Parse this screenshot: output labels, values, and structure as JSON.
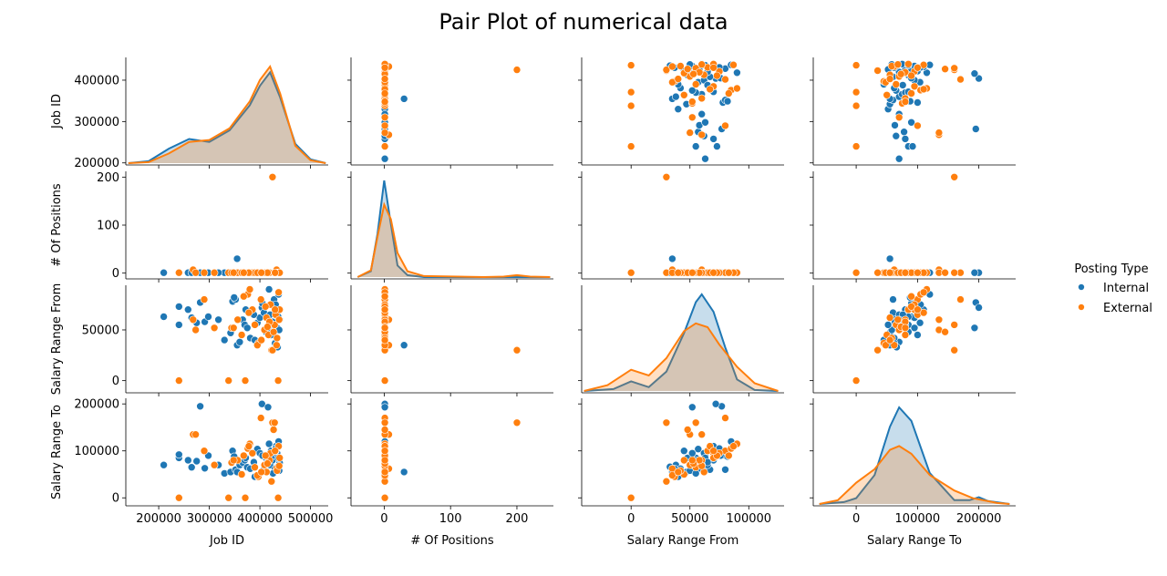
{
  "colors": {
    "internal": "#1f77b4",
    "external": "#ff7f0e"
  },
  "chart_data": {
    "type": "scatter",
    "title": "Pair Plot of numerical data",
    "variables": [
      "Job ID",
      "# Of Positions",
      "Salary Range From",
      "Salary Range To"
    ],
    "ranges": {
      "Job ID": [
        135000,
        535000
      ],
      "# Of Positions": [
        -50,
        255
      ],
      "Salary Range From": [
        -42000,
        130000
      ],
      "Salary Range To": [
        -70000,
        260000
      ]
    },
    "ylims": {
      "Job ID": [
        195000,
        455000
      ],
      "# Of Positions": [
        -12,
        212
      ],
      "Salary Range From": [
        -12000,
        94000
      ],
      "Salary Range To": [
        -17000,
        212000
      ]
    },
    "ticks": {
      "Job ID": {
        "values": [
          200000,
          300000,
          400000,
          500000
        ],
        "labels": [
          "200000",
          "300000",
          "400000",
          "500000"
        ]
      },
      "# Of Positions": {
        "values": [
          0,
          100,
          200
        ],
        "labels": [
          "0",
          "100",
          "200"
        ]
      },
      "Salary Range From": {
        "values": [
          0,
          50000,
          100000
        ],
        "labels": [
          "0",
          "50000",
          "100000"
        ]
      },
      "Salary Range To": {
        "values": [
          0,
          100000,
          200000
        ],
        "labels": [
          "0",
          "100000",
          "200000"
        ]
      }
    },
    "row_ticks": [
      {
        "values": [
          200000,
          300000,
          400000
        ],
        "labels": [
          "200000",
          "300000",
          "400000"
        ]
      },
      {
        "values": [
          0,
          100,
          200
        ],
        "labels": [
          "0",
          "100",
          "200"
        ]
      },
      {
        "values": [
          0,
          50000
        ],
        "labels": [
          "0",
          "50000"
        ]
      },
      {
        "values": [
          0,
          100000,
          200000
        ],
        "labels": [
          "0",
          "100000",
          "200000"
        ]
      }
    ],
    "legend": {
      "title": "Posting Type",
      "entries": [
        "Internal",
        "External"
      ],
      "position": "right"
    },
    "hue": [
      "Internal",
      "External"
    ],
    "kde": {
      "Job ID": {
        "Internal": [
          [
            140000,
            0.0
          ],
          [
            180000,
            0.02
          ],
          [
            220000,
            0.15
          ],
          [
            260000,
            0.25
          ],
          [
            300000,
            0.22
          ],
          [
            340000,
            0.34
          ],
          [
            380000,
            0.6
          ],
          [
            400000,
            0.8
          ],
          [
            420000,
            0.94
          ],
          [
            440000,
            0.68
          ],
          [
            470000,
            0.2
          ],
          [
            500000,
            0.04
          ],
          [
            530000,
            0.0
          ]
        ],
        "External": [
          [
            140000,
            0.0
          ],
          [
            180000,
            0.01
          ],
          [
            220000,
            0.1
          ],
          [
            260000,
            0.22
          ],
          [
            300000,
            0.24
          ],
          [
            340000,
            0.36
          ],
          [
            380000,
            0.64
          ],
          [
            400000,
            0.86
          ],
          [
            420000,
            1.0
          ],
          [
            440000,
            0.72
          ],
          [
            470000,
            0.18
          ],
          [
            500000,
            0.03
          ],
          [
            530000,
            0.0
          ]
        ]
      },
      "# Of Positions": {
        "Internal": [
          [
            -40,
            0.0
          ],
          [
            -20,
            0.06
          ],
          [
            -10,
            0.45
          ],
          [
            0,
            1.0
          ],
          [
            10,
            0.55
          ],
          [
            20,
            0.12
          ],
          [
            35,
            0.02
          ],
          [
            60,
            0.0
          ],
          [
            250,
            0.0
          ]
        ],
        "External": [
          [
            -40,
            0.0
          ],
          [
            -20,
            0.07
          ],
          [
            -10,
            0.42
          ],
          [
            0,
            0.75
          ],
          [
            10,
            0.6
          ],
          [
            20,
            0.25
          ],
          [
            35,
            0.06
          ],
          [
            60,
            0.01
          ],
          [
            150,
            0.0
          ],
          [
            180,
            0.005
          ],
          [
            200,
            0.02
          ],
          [
            220,
            0.005
          ],
          [
            250,
            0.0
          ]
        ]
      },
      "Salary Range From": {
        "Internal": [
          [
            -40000,
            0.0
          ],
          [
            -15000,
            0.02
          ],
          [
            0,
            0.1
          ],
          [
            15000,
            0.04
          ],
          [
            30000,
            0.2
          ],
          [
            45000,
            0.6
          ],
          [
            55000,
            0.92
          ],
          [
            60000,
            1.0
          ],
          [
            70000,
            0.82
          ],
          [
            80000,
            0.45
          ],
          [
            90000,
            0.12
          ],
          [
            105000,
            0.01
          ],
          [
            125000,
            0.0
          ]
        ],
        "External": [
          [
            -40000,
            0.0
          ],
          [
            -20000,
            0.06
          ],
          [
            0,
            0.22
          ],
          [
            15000,
            0.16
          ],
          [
            30000,
            0.34
          ],
          [
            45000,
            0.62
          ],
          [
            55000,
            0.7
          ],
          [
            65000,
            0.66
          ],
          [
            75000,
            0.48
          ],
          [
            90000,
            0.25
          ],
          [
            105000,
            0.08
          ],
          [
            125000,
            0.0
          ]
        ]
      },
      "Salary Range To": {
        "Internal": [
          [
            -60000,
            0.0
          ],
          [
            -20000,
            0.02
          ],
          [
            0,
            0.06
          ],
          [
            30000,
            0.3
          ],
          [
            55000,
            0.8
          ],
          [
            70000,
            1.0
          ],
          [
            90000,
            0.86
          ],
          [
            120000,
            0.32
          ],
          [
            160000,
            0.04
          ],
          [
            185000,
            0.04
          ],
          [
            200000,
            0.07
          ],
          [
            215000,
            0.03
          ],
          [
            250000,
            0.0
          ]
        ],
        "External": [
          [
            -60000,
            0.0
          ],
          [
            -30000,
            0.04
          ],
          [
            0,
            0.22
          ],
          [
            30000,
            0.36
          ],
          [
            55000,
            0.56
          ],
          [
            70000,
            0.6
          ],
          [
            90000,
            0.52
          ],
          [
            120000,
            0.3
          ],
          [
            160000,
            0.14
          ],
          [
            190000,
            0.06
          ],
          [
            230000,
            0.01
          ],
          [
            250000,
            0.0
          ]
        ]
      }
    },
    "points": {
      "Internal": [
        [
          210000,
          1,
          63000,
          70000
        ],
        [
          240000,
          1,
          55000,
          85000
        ],
        [
          240000,
          1,
          73000,
          92000
        ],
        [
          258000,
          1,
          70000,
          80000
        ],
        [
          265000,
          1,
          62000,
          65000
        ],
        [
          275000,
          1,
          57000,
          78000
        ],
        [
          282000,
          1,
          77000,
          195000
        ],
        [
          291000,
          1,
          58000,
          63000
        ],
        [
          298000,
          1,
          63000,
          90000
        ],
        [
          330000,
          1,
          40000,
          52000
        ],
        [
          342000,
          1,
          47000,
          55000
        ],
        [
          346000,
          1,
          78000,
          100000
        ],
        [
          352000,
          1,
          80000,
          60000
        ],
        [
          355000,
          30,
          35000,
          55000
        ],
        [
          360000,
          1,
          38000,
          70000
        ],
        [
          366000,
          1,
          60000,
          75000
        ],
        [
          370000,
          1,
          55000,
          80000
        ],
        [
          375000,
          1,
          52000,
          65000
        ],
        [
          381000,
          1,
          42000,
          62000
        ],
        [
          390000,
          1,
          40000,
          45000
        ],
        [
          395000,
          1,
          57000,
          104000
        ],
        [
          400000,
          1,
          62000,
          95000
        ],
        [
          404000,
          1,
          72000,
          200000
        ],
        [
          408000,
          1,
          67000,
          60000
        ],
        [
          412000,
          1,
          48000,
          85000
        ],
        [
          416000,
          1,
          52000,
          193000
        ],
        [
          418000,
          1,
          90000,
          115000
        ],
        [
          420000,
          1,
          65000,
          70000
        ],
        [
          422000,
          1,
          45000,
          100000
        ],
        [
          425000,
          1,
          58000,
          80000
        ],
        [
          428000,
          1,
          80000,
          90000
        ],
        [
          430000,
          1,
          37000,
          62000
        ],
        [
          432000,
          1,
          70000,
          110000
        ],
        [
          434000,
          1,
          52000,
          95000
        ],
        [
          435000,
          1,
          33000,
          66000
        ],
        [
          437000,
          1,
          85000,
          120000
        ],
        [
          438000,
          1,
          50000,
          58000
        ],
        [
          439000,
          1,
          60000,
          75000
        ],
        [
          436000,
          1,
          63000,
          85000
        ],
        [
          405000,
          1,
          76000,
          90000
        ],
        [
          388000,
          1,
          65000,
          76000
        ],
        [
          372000,
          1,
          70000,
          85000
        ],
        [
          349000,
          1,
          82000,
          88000
        ],
        [
          318000,
          1,
          60000,
          70000
        ],
        [
          426000,
          1,
          55000,
          52000
        ],
        [
          431000,
          1,
          75000,
          105000
        ]
      ],
      "External": [
        [
          240000,
          1,
          0,
          0
        ],
        [
          268000,
          7,
          60000,
          135000
        ],
        [
          273000,
          1,
          50000,
          135000
        ],
        [
          290000,
          1,
          80000,
          100000
        ],
        [
          310000,
          1,
          52000,
          70000
        ],
        [
          338000,
          1,
          0,
          0
        ],
        [
          344000,
          1,
          52000,
          75000
        ],
        [
          356000,
          1,
          60000,
          80000
        ],
        [
          364000,
          1,
          45000,
          50000
        ],
        [
          371000,
          1,
          0,
          0
        ],
        [
          376000,
          1,
          85000,
          105000
        ],
        [
          380000,
          1,
          90000,
          115000
        ],
        [
          385000,
          1,
          70000,
          95000
        ],
        [
          390000,
          1,
          55000,
          65000
        ],
        [
          397000,
          1,
          37000,
          45000
        ],
        [
          402000,
          1,
          80000,
          170000
        ],
        [
          409000,
          1,
          50000,
          70000
        ],
        [
          413000,
          1,
          62000,
          55000
        ],
        [
          417000,
          1,
          45000,
          80000
        ],
        [
          421000,
          1,
          75000,
          95000
        ],
        [
          423000,
          1,
          30000,
          35000
        ],
        [
          425000,
          200,
          30000,
          160000
        ],
        [
          427000,
          1,
          48000,
          145000
        ],
        [
          429000,
          1,
          55000,
          160000
        ],
        [
          431000,
          1,
          65000,
          100000
        ],
        [
          433000,
          7,
          35000,
          62000
        ],
        [
          434000,
          1,
          42000,
          58000
        ],
        [
          436000,
          1,
          0,
          0
        ],
        [
          437000,
          1,
          87000,
          110000
        ],
        [
          438000,
          1,
          60000,
          68000
        ],
        [
          439000,
          1,
          70000,
          85000
        ],
        [
          419000,
          1,
          58000,
          80000
        ],
        [
          411000,
          1,
          73000,
          90000
        ],
        [
          395000,
          1,
          35000,
          48000
        ],
        [
          378000,
          1,
          67000,
          110000
        ],
        [
          415000,
          1,
          53000,
          73000
        ],
        [
          403000,
          1,
          40000,
          55000
        ],
        [
          368000,
          1,
          83000,
          90000
        ],
        [
          348000,
          1,
          52000,
          80000
        ],
        [
          430000,
          1,
          70000,
          100000
        ]
      ]
    }
  }
}
